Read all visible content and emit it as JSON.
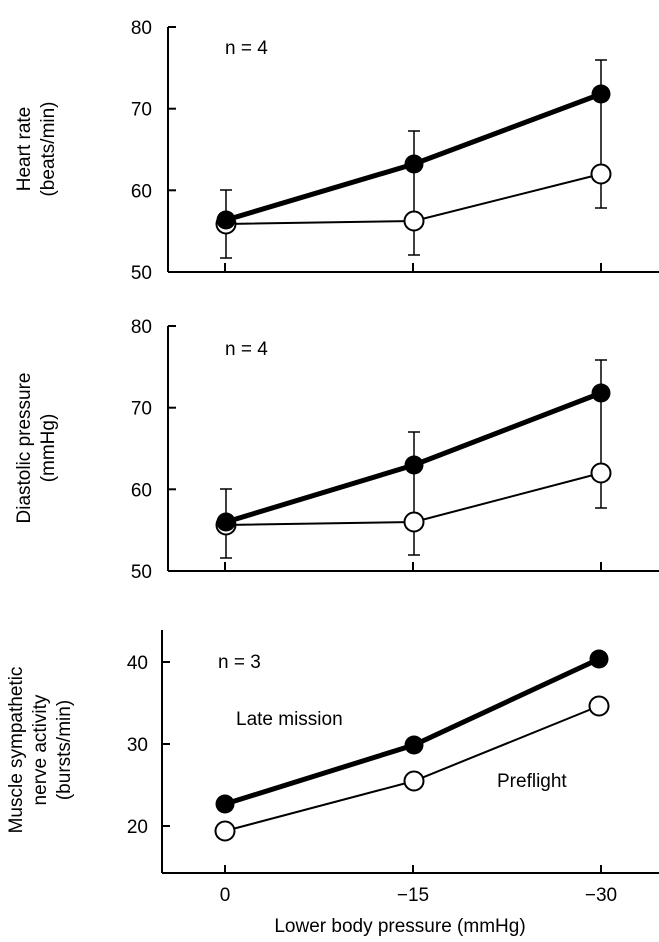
{
  "chart_data": [
    {
      "type": "line",
      "ylabel_lines": [
        "Heart rate",
        "(beats/min)"
      ],
      "n_label": "n = 4",
      "ylim": [
        50,
        80
      ],
      "yticks": [
        "80",
        "70",
        "60",
        "50"
      ],
      "x": [
        0,
        -15,
        -30
      ],
      "series": [
        {
          "values": [
            56.2,
            63.0,
            71.5
          ],
          "error": [
            3.8,
            4.0,
            4.2
          ],
          "marker": "filled"
        },
        {
          "values": [
            55.7,
            56.0,
            61.8
          ],
          "error": [
            4.2,
            4.0,
            4.0
          ],
          "marker": "open"
        }
      ]
    },
    {
      "type": "line",
      "ylabel_lines": [
        "Diastolic pressure",
        "(mmHg)"
      ],
      "n_label": "n = 4",
      "ylim": [
        50,
        80
      ],
      "yticks": [
        "80",
        "70",
        "60",
        "50"
      ],
      "x": [
        0,
        -15,
        -30
      ],
      "series": [
        {
          "values": [
            56.0,
            63.0,
            71.5
          ],
          "error": [
            4.0,
            4.0,
            4.2
          ],
          "marker": "filled"
        },
        {
          "values": [
            55.6,
            56.0,
            61.8
          ],
          "error": [
            4.1,
            4.0,
            4.0
          ],
          "marker": "open"
        }
      ]
    },
    {
      "type": "line",
      "ylabel_lines": [
        "Muscle sympathetic",
        "nerve activity",
        "(bursts/min)"
      ],
      "n_label": "n = 3",
      "ylim": [
        15,
        43
      ],
      "yticks": [
        "40",
        "30",
        "20"
      ],
      "x": [
        0,
        -15,
        -30
      ],
      "xticks": [
        "0",
        "−15",
        "−30"
      ],
      "xlabel": "Lower body pressure (mmHg)",
      "series": [
        {
          "name": "Late mission",
          "values": [
            22.7,
            30.0,
            40.3
          ],
          "marker": "filled"
        },
        {
          "name": "Preflight",
          "values": [
            19.5,
            25.5,
            34.7
          ],
          "marker": "open"
        }
      ]
    }
  ]
}
